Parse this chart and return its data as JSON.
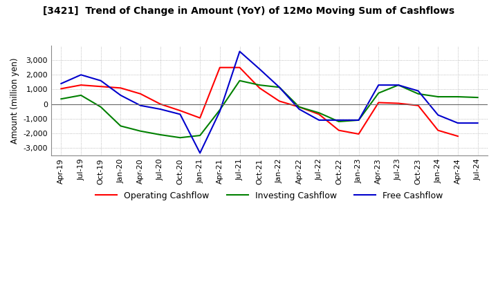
{
  "title": "[3421]  Trend of Change in Amount (YoY) of 12Mo Moving Sum of Cashflows",
  "ylabel": "Amount (million yen)",
  "ylim": [
    -3500,
    4000
  ],
  "yticks": [
    -3000,
    -2000,
    -1000,
    0,
    1000,
    2000,
    3000
  ],
  "background_color": "#ffffff",
  "plot_background_color": "#ffffff",
  "grid_color": "#aaaaaa",
  "legend_labels": [
    "Operating Cashflow",
    "Investing Cashflow",
    "Free Cashflow"
  ],
  "line_colors": [
    "#ff0000",
    "#008000",
    "#0000cc"
  ],
  "x_labels": [
    "Apr-19",
    "Jul-19",
    "Oct-19",
    "Jan-20",
    "Apr-20",
    "Jul-20",
    "Oct-20",
    "Jan-21",
    "Apr-21",
    "Jul-21",
    "Oct-21",
    "Jan-22",
    "Apr-22",
    "Jul-22",
    "Oct-22",
    "Jan-23",
    "Apr-23",
    "Jul-23",
    "Oct-23",
    "Jan-24",
    "Apr-24",
    "Jul-24"
  ],
  "operating": [
    1050,
    1300,
    1200,
    1100,
    700,
    0,
    -450,
    -950,
    2500,
    2500,
    1100,
    200,
    -200,
    -700,
    -1800,
    -2050,
    100,
    50,
    -100,
    -1800,
    -2200,
    null
  ],
  "investing": [
    350,
    600,
    -200,
    -1500,
    -1850,
    -2100,
    -2300,
    -2150,
    -400,
    1600,
    1300,
    1150,
    -200,
    -600,
    -1200,
    -1100,
    750,
    1300,
    700,
    500,
    500,
    450
  ],
  "free": [
    1400,
    2000,
    1600,
    600,
    -100,
    -350,
    -700,
    -3350,
    -500,
    3600,
    2400,
    1150,
    -350,
    -1100,
    -1100,
    -1100,
    1300,
    1300,
    900,
    -750,
    -1300,
    -1300
  ]
}
